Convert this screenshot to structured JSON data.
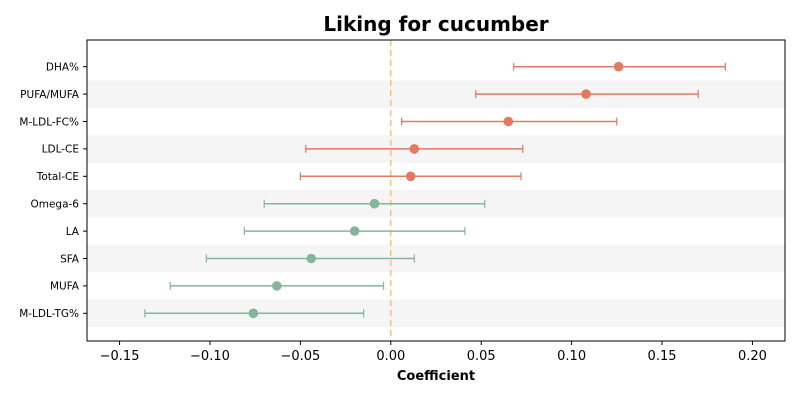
{
  "chart_data": {
    "type": "scatter",
    "title": "Liking for cucumber",
    "xlabel": "Coefficient",
    "ylabel": "",
    "xlim": [
      -0.168,
      0.218
    ],
    "xticks": [
      -0.15,
      -0.1,
      -0.05,
      0.0,
      0.05,
      0.1,
      0.15,
      0.2
    ],
    "xtick_labels": [
      "−0.15",
      "−0.10",
      "−0.05",
      "0.00",
      "0.05",
      "0.10",
      "0.15",
      "0.20"
    ],
    "reference_line": {
      "x": 0.0,
      "style": "dashed",
      "color": "#f2c57c"
    },
    "grid": false,
    "row_stripes": true,
    "colors": {
      "positive": "#e07b5f",
      "negative": "#84b59d",
      "stripe": "#f5f5f5"
    },
    "points": [
      {
        "label": "DHA%",
        "estimate": 0.126,
        "ci_low": 0.068,
        "ci_high": 0.185
      },
      {
        "label": "PUFA/MUFA",
        "estimate": 0.108,
        "ci_low": 0.047,
        "ci_high": 0.17
      },
      {
        "label": "M-LDL-FC%",
        "estimate": 0.065,
        "ci_low": 0.006,
        "ci_high": 0.125
      },
      {
        "label": "LDL-CE",
        "estimate": 0.013,
        "ci_low": -0.047,
        "ci_high": 0.073
      },
      {
        "label": "Total-CE",
        "estimate": 0.011,
        "ci_low": -0.05,
        "ci_high": 0.072
      },
      {
        "label": "Omega-6",
        "estimate": -0.009,
        "ci_low": -0.07,
        "ci_high": 0.052
      },
      {
        "label": "LA",
        "estimate": -0.02,
        "ci_low": -0.081,
        "ci_high": 0.041
      },
      {
        "label": "SFA",
        "estimate": -0.044,
        "ci_low": -0.102,
        "ci_high": 0.013
      },
      {
        "label": "MUFA",
        "estimate": -0.063,
        "ci_low": -0.122,
        "ci_high": -0.004
      },
      {
        "label": "M-LDL-TG%",
        "estimate": -0.076,
        "ci_low": -0.136,
        "ci_high": -0.015
      }
    ]
  }
}
